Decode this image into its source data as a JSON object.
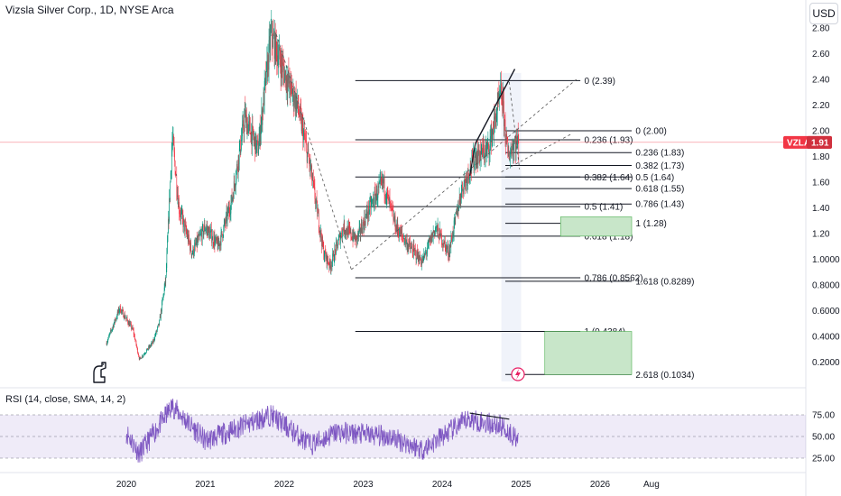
{
  "header": {
    "title": "Vizsla Silver Corp., 1D, NYSE Arca",
    "currency": "USD"
  },
  "rsi": {
    "title": "RSI (14, close, SMA, 14, 2)",
    "levels": [
      75,
      50,
      25
    ],
    "tick_labels": [
      "75.00",
      "50.00",
      "25.00"
    ],
    "ylim": [
      15,
      100
    ]
  },
  "price_axis": {
    "ticks": [
      2.8,
      2.6,
      2.4,
      2.2,
      2.0,
      1.8,
      1.6,
      1.4,
      1.2,
      1.0,
      0.8,
      0.6,
      0.4,
      0.2
    ],
    "tick_labels": [
      "2.80",
      "2.60",
      "2.40",
      "2.20",
      "2.00",
      "1.80",
      "1.60",
      "1.40",
      "1.20",
      "1.0000",
      "0.8000",
      "0.6000",
      "0.4000",
      "0.2000"
    ]
  },
  "time_axis": {
    "labels": [
      "2020",
      "2021",
      "2022",
      "2023",
      "2024",
      "2025",
      "2026",
      "Aug"
    ]
  },
  "last_price": {
    "symbol": "VZLA",
    "value": "1.91",
    "price": 1.91,
    "color": "#f23645"
  },
  "colors": {
    "up": "#089981",
    "down": "#f23645",
    "rsi": "#7e57c2",
    "rsi_band": "#7e57c2",
    "fib_box": "#c8e6c9",
    "fib_box_border": "#4caf50"
  },
  "fib_levels": [
    {
      "label": "0 (2.39)",
      "price": 2.39
    },
    {
      "label": "0.236 (1.93)",
      "price": 1.93
    },
    {
      "label": "0 (2.00)",
      "price": 2.0
    },
    {
      "label": "0.236 (1.83)",
      "price": 1.83
    },
    {
      "label": "0.382 (1.73)",
      "price": 1.73
    },
    {
      "label": "0.382 (1.64)",
      "price": 1.64
    },
    {
      "label": "0.5 (1.64)",
      "price": 1.64
    },
    {
      "label": "0.618 (1.55)",
      "price": 1.55
    },
    {
      "label": "0.5 (1.41)",
      "price": 1.41
    },
    {
      "label": "0.786 (1.43)",
      "price": 1.43
    },
    {
      "label": "1 (1.28)",
      "price": 1.28
    },
    {
      "label": "0.618 (1.18)",
      "price": 1.18
    },
    {
      "label": "0.786 (0.8562)",
      "price": 0.8562
    },
    {
      "label": "1.618 (0.8289)",
      "price": 0.8289
    },
    {
      "label": "1 (0.4384)",
      "price": 0.4384
    },
    {
      "label": "2.618 (0.1034)",
      "price": 0.1034
    }
  ],
  "chart_data": {
    "type": "candlestick",
    "symbol": "VZLA",
    "interval": "1D",
    "x_range": [
      "2019-06",
      "2026-08"
    ],
    "ylim": [
      0.0,
      2.9
    ],
    "grid": false,
    "series": [
      {
        "name": "price",
        "values_approx": [
          {
            "date": "2019-10",
            "close": 0.35
          },
          {
            "date": "2019-12",
            "close": 0.62
          },
          {
            "date": "2020-02",
            "close": 0.45
          },
          {
            "date": "2020-03",
            "close": 0.22
          },
          {
            "date": "2020-05",
            "close": 0.35
          },
          {
            "date": "2020-06",
            "close": 0.5
          },
          {
            "date": "2020-07",
            "close": 0.85
          },
          {
            "date": "2020-08",
            "close": 1.95
          },
          {
            "date": "2020-09",
            "close": 1.4
          },
          {
            "date": "2020-11",
            "close": 1.05
          },
          {
            "date": "2021-01",
            "close": 1.25
          },
          {
            "date": "2021-03",
            "close": 1.1
          },
          {
            "date": "2021-05",
            "close": 1.45
          },
          {
            "date": "2021-07",
            "close": 2.1
          },
          {
            "date": "2021-09",
            "close": 1.85
          },
          {
            "date": "2021-11",
            "close": 2.75
          },
          {
            "date": "2022-01",
            "close": 2.45
          },
          {
            "date": "2022-03",
            "close": 2.2
          },
          {
            "date": "2022-05",
            "close": 1.7
          },
          {
            "date": "2022-07",
            "close": 1.05
          },
          {
            "date": "2022-08",
            "close": 0.95
          },
          {
            "date": "2022-10",
            "close": 1.25
          },
          {
            "date": "2022-12",
            "close": 1.15
          },
          {
            "date": "2023-02",
            "close": 1.4
          },
          {
            "date": "2023-04",
            "close": 1.6
          },
          {
            "date": "2023-06",
            "close": 1.25
          },
          {
            "date": "2023-08",
            "close": 1.1
          },
          {
            "date": "2023-10",
            "close": 0.98
          },
          {
            "date": "2023-12",
            "close": 1.25
          },
          {
            "date": "2024-02",
            "close": 1.05
          },
          {
            "date": "2024-04",
            "close": 1.55
          },
          {
            "date": "2024-06",
            "close": 1.8
          },
          {
            "date": "2024-08",
            "close": 1.85
          },
          {
            "date": "2024-10",
            "close": 2.3
          },
          {
            "date": "2024-11",
            "close": 1.8
          },
          {
            "date": "2024-12",
            "close": 1.91
          }
        ]
      },
      {
        "name": "RSI",
        "values_approx": [
          {
            "date": "2020-01",
            "value": 55
          },
          {
            "date": "2020-03",
            "value": 30
          },
          {
            "date": "2020-08",
            "value": 85
          },
          {
            "date": "2021-01",
            "value": 45
          },
          {
            "date": "2021-06",
            "value": 60
          },
          {
            "date": "2021-11",
            "value": 75
          },
          {
            "date": "2022-05",
            "value": 40
          },
          {
            "date": "2022-09",
            "value": 55
          },
          {
            "date": "2023-05",
            "value": 50
          },
          {
            "date": "2023-10",
            "value": 35
          },
          {
            "date": "2024-05",
            "value": 70
          },
          {
            "date": "2024-10",
            "value": 62
          },
          {
            "date": "2024-12",
            "value": 50
          }
        ]
      }
    ]
  }
}
